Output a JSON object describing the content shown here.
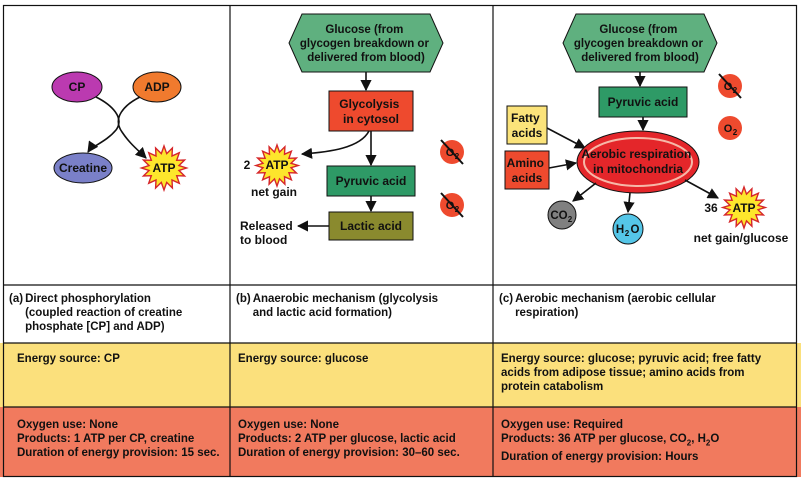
{
  "colors": {
    "glucose_hex": "#5fb07f",
    "glycolysis": "#ee4a2e",
    "pyruvic": "#2e9a66",
    "lactic": "#8a8a2e",
    "cp": "#bb3ab0",
    "adp": "#f07a2e",
    "creatine": "#7a80c8",
    "atp_star": "#fde62c",
    "fatty": "#fbe37a",
    "amino": "#ee4a2e",
    "mito": "#e4262a",
    "co2": "#808080",
    "h2o": "#55c6e8",
    "o2": "#ee4a2e",
    "energy_row": "#fbe07c",
    "oxygen_row": "#f17a5e"
  },
  "panel_a": {
    "cp": "CP",
    "adp": "ADP",
    "creatine": "Creatine",
    "atp": "ATP"
  },
  "panel_b": {
    "glucose": [
      "Glucose (from",
      "glycogen breakdown or",
      "delivered from blood)"
    ],
    "glycolysis": [
      "Glycolysis",
      "in cytosol"
    ],
    "atp_count": "2",
    "atp": "ATP",
    "net_gain": "net gain",
    "pyruvic": "Pyruvic acid",
    "lactic": "Lactic acid",
    "released": [
      "Released",
      "to blood"
    ],
    "o2_symbol": "O",
    "o2_sub": "2"
  },
  "panel_c": {
    "glucose": [
      "Glucose (from",
      "glycogen breakdown or",
      "delivered from blood)"
    ],
    "pyruvic": "Pyruvic acid",
    "fatty": [
      "Fatty",
      "acids"
    ],
    "amino": [
      "Amino",
      "acids"
    ],
    "aerobic": [
      "Aerobic respiration",
      "in mitochondria"
    ],
    "co2_symbol": "CO",
    "co2_sub": "2",
    "h2o_h": "H",
    "h2o_sub": "2",
    "h2o_o": "O",
    "atp_count": "36",
    "atp": "ATP",
    "net_gain": "net gain/glucose",
    "o2_symbol": "O",
    "o2_sub": "2"
  },
  "table": {
    "columns": [
      {
        "label": "(a)",
        "title": [
          "Direct phosphorylation",
          "(coupled reaction of creatine",
          "phosphate [CP] and ADP)"
        ],
        "energy": [
          "Energy source: CP"
        ],
        "oxygen": [
          "Oxygen use: None",
          "Products: 1 ATP per CP, creatine",
          "Duration of energy provision: 15 sec."
        ]
      },
      {
        "label": "(b)",
        "title": [
          "Anaerobic mechanism (glycolysis",
          "and lactic acid formation)"
        ],
        "energy": [
          "Energy source: glucose"
        ],
        "oxygen": [
          "Oxygen use: None",
          "Products: 2 ATP per glucose, lactic acid",
          "Duration of energy provision: 30–60 sec."
        ]
      },
      {
        "label": "(c)",
        "title": [
          "Aerobic mechanism (aerobic cellular",
          "respiration)"
        ],
        "energy": [
          "Energy source: glucose; pyruvic acid; free fatty",
          "acids from adipose tissue; amino acids from",
          "protein catabolism"
        ],
        "oxygen_line1": "Oxygen use: Required",
        "oxygen_line2_pre": "Products: 36 ATP per glucose, CO",
        "oxygen_line2_sub1": "2",
        "oxygen_line2_mid": ", H",
        "oxygen_line2_sub2": "2",
        "oxygen_line2_post": "O",
        "oxygen_line3": "Duration of energy provision: Hours"
      }
    ]
  }
}
